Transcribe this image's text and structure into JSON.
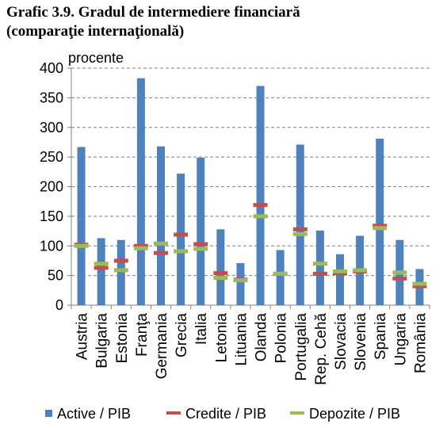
{
  "chart_data": {
    "type": "bar",
    "title_lines": [
      "Grafic 3.9. Gradul de intermediere financiară",
      "(comparaţie internaţională)"
    ],
    "unit_label": "procente",
    "categories": [
      "Austria",
      "Bulgaria",
      "Estonia",
      "Franţa",
      "Germania",
      "Grecia",
      "Italia",
      "Letonia",
      "Lituania",
      "Olanda",
      "Polonia",
      "Portugalia",
      "Rep. Cehă",
      "Slovacia",
      "Slovenia",
      "Spania",
      "Ungaria",
      "România"
    ],
    "ylim": [
      0,
      400
    ],
    "yticks": [
      "0",
      "50",
      "100",
      "150",
      "200",
      "250",
      "300",
      "350",
      "400"
    ],
    "grid": true,
    "legend_position": "bottom",
    "series": [
      {
        "name": "Active / PIB",
        "kind": "bar",
        "color": "#4F81BD",
        "values": [
          267,
          113,
          110,
          383,
          268,
          222,
          249,
          128,
          71,
          370,
          93,
          271,
          126,
          86,
          117,
          281,
          110,
          61
        ]
      },
      {
        "name": "Credite / PIB",
        "kind": "marker",
        "color": "#C0504D",
        "values": [
          102,
          63,
          75,
          100,
          88,
          119,
          103,
          54,
          43,
          169,
          53,
          128,
          53,
          54,
          57,
          134,
          45,
          32
        ]
      },
      {
        "name": "Depozite / PIB",
        "kind": "marker",
        "color": "#9BBB59",
        "values": [
          100,
          70,
          59,
          96,
          104,
          91,
          95,
          46,
          42,
          150,
          53,
          120,
          70,
          57,
          59,
          130,
          55,
          36
        ]
      }
    ]
  }
}
